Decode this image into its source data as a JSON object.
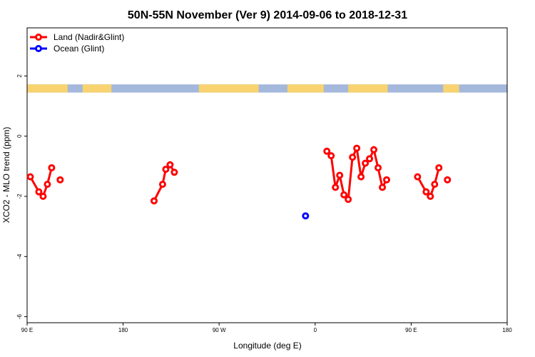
{
  "chart_data": {
    "type": "scatter",
    "title": "50N-55N November (Ver 9)   2014-09-06 to 2018-12-31",
    "xlabel": "Longitude (deg E)",
    "ylabel": "XCO2 - MLO trend (ppm)",
    "xlim": [
      90,
      450
    ],
    "ylim": [
      -6.2,
      3.6
    ],
    "x_ticks": [
      {
        "value": 90,
        "label": "90 E"
      },
      {
        "value": 180,
        "label": "180"
      },
      {
        "value": 270,
        "label": "90 W"
      },
      {
        "value": 360,
        "label": "0"
      },
      {
        "value": 450,
        "label": "90 E"
      },
      {
        "value": 540,
        "label": "180"
      }
    ],
    "y_ticks": [
      {
        "value": 2,
        "label": "2"
      },
      {
        "value": 0,
        "label": "0"
      },
      {
        "value": -2,
        "label": "-2"
      },
      {
        "value": -4,
        "label": "-4"
      },
      {
        "value": -6,
        "label": "-6"
      }
    ],
    "legend_position": "top-left",
    "colors": {
      "land": "#ff0000",
      "ocean": "#0000ff",
      "band_land": "#f8d370",
      "band_ocean": "#a4b8dc"
    },
    "series": [
      {
        "name": "Land (Nadir&Glint)",
        "color": "#ff0000",
        "points": [
          [
            93,
            -1.35
          ],
          [
            101,
            -1.85
          ],
          [
            105,
            -2.0
          ],
          [
            109,
            -1.6
          ],
          [
            113,
            -1.05
          ],
          [
            121,
            -1.45
          ],
          [
            209,
            -2.15
          ],
          [
            217,
            -1.6
          ],
          [
            220,
            -1.1
          ],
          [
            224,
            -0.95
          ],
          [
            228,
            -1.2
          ],
          [
            371,
            -0.5
          ],
          [
            375,
            -0.65
          ],
          [
            379,
            -1.7
          ],
          [
            383,
            -1.3
          ],
          [
            387,
            -1.95
          ],
          [
            391,
            -2.1
          ],
          [
            395,
            -0.7
          ],
          [
            399,
            -0.4
          ],
          [
            403,
            -1.35
          ],
          [
            407,
            -0.9
          ],
          [
            411,
            -0.75
          ],
          [
            415,
            -0.45
          ],
          [
            419,
            -1.05
          ],
          [
            423,
            -1.7
          ],
          [
            427,
            -1.45
          ],
          [
            456,
            -1.35
          ],
          [
            464,
            -1.85
          ],
          [
            468,
            -2.0
          ],
          [
            472,
            -1.6
          ],
          [
            476,
            -1.05
          ],
          [
            484,
            -1.45
          ]
        ],
        "segments": [
          [
            0,
            5
          ],
          [
            5,
            6
          ],
          [
            6,
            11
          ],
          [
            11,
            26
          ],
          [
            26,
            31
          ],
          [
            31,
            32
          ]
        ]
      },
      {
        "name": "Ocean (Glint)",
        "color": "#0000ff",
        "points": [
          [
            351,
            -2.65
          ]
        ],
        "segments": [
          [
            0,
            1
          ]
        ]
      }
    ],
    "surface_band": {
      "y_range": [
        1.45,
        1.72
      ],
      "land_intervals": [
        [
          90,
          128
        ],
        [
          142,
          169
        ],
        [
          251,
          307
        ],
        [
          334,
          368
        ],
        [
          391,
          428
        ],
        [
          480,
          495
        ]
      ]
    }
  }
}
